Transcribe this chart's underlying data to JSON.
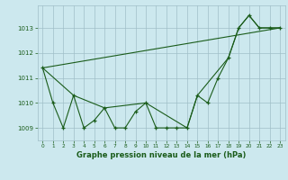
{
  "title": "Graphe pression niveau de la mer (hPa)",
  "background_color": "#cce8ee",
  "grid_color": "#a0bfc8",
  "line_color": "#1a5c1a",
  "xlim": [
    -0.5,
    23.5
  ],
  "ylim": [
    1008.5,
    1013.9
  ],
  "yticks": [
    1009,
    1010,
    1011,
    1012,
    1013
  ],
  "xticks": [
    0,
    1,
    2,
    3,
    4,
    5,
    6,
    7,
    8,
    9,
    10,
    11,
    12,
    13,
    14,
    15,
    16,
    17,
    18,
    19,
    20,
    21,
    22,
    23
  ],
  "series_main": {
    "x": [
      0,
      1,
      2,
      3,
      4,
      5,
      6,
      7,
      8,
      9,
      10,
      11,
      12,
      13,
      14,
      15,
      16,
      17,
      18,
      19,
      20,
      21,
      22,
      23
    ],
    "y": [
      1011.4,
      1010.0,
      1009.0,
      1010.3,
      1009.0,
      1009.3,
      1009.8,
      1009.0,
      1009.0,
      1009.65,
      1010.0,
      1009.0,
      1009.0,
      1009.0,
      1009.0,
      1010.3,
      1010.0,
      1011.0,
      1011.8,
      1013.0,
      1013.5,
      1013.0,
      1013.0,
      1013.0
    ]
  },
  "series_smooth": {
    "x": [
      0,
      3,
      6,
      10,
      14,
      15,
      18,
      19,
      20,
      21,
      22,
      23
    ],
    "y": [
      1011.4,
      1010.3,
      1009.8,
      1010.0,
      1009.0,
      1010.3,
      1011.8,
      1013.0,
      1013.5,
      1013.0,
      1013.0,
      1013.0
    ]
  },
  "series_line": {
    "x": [
      0,
      23
    ],
    "y": [
      1011.4,
      1013.0
    ]
  }
}
